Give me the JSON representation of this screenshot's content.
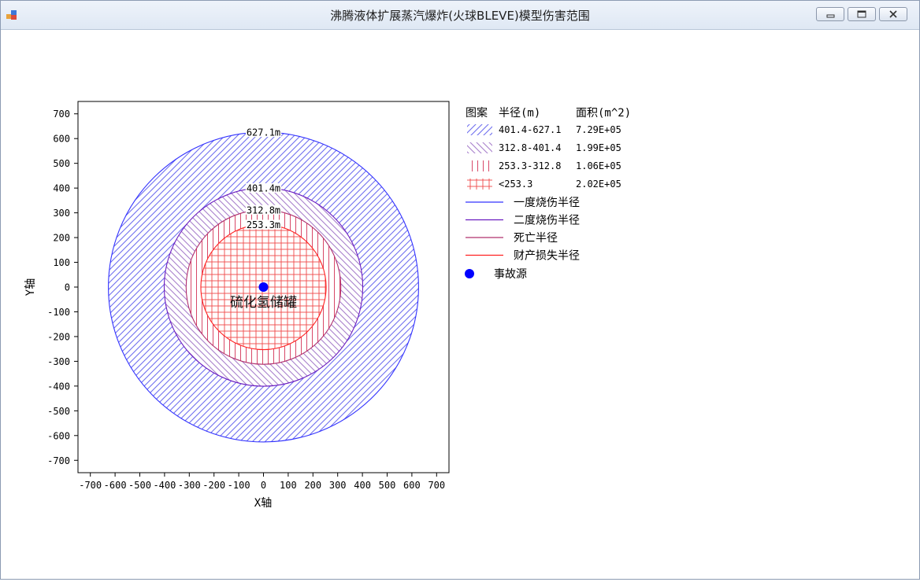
{
  "window": {
    "title": "沸腾液体扩展蒸汽爆炸(火球BLEVE)模型伤害范围",
    "icon": "app-icon",
    "controls": [
      "minimize-icon",
      "maximize-icon",
      "close-icon"
    ]
  },
  "chart_data": {
    "type": "radius-zones",
    "xlabel": "X轴",
    "ylabel": "Y轴",
    "xlim": [
      -750,
      750
    ],
    "ylim": [
      -750,
      750
    ],
    "xticks": [
      -700,
      -600,
      -500,
      -400,
      -300,
      -200,
      -100,
      0,
      100,
      200,
      300,
      400,
      500,
      600,
      700
    ],
    "yticks": [
      700,
      600,
      500,
      400,
      300,
      200,
      100,
      0,
      -100,
      -200,
      -300,
      -400,
      -500,
      -600,
      -700
    ],
    "source": {
      "label": "硫化氢储罐",
      "x": 0,
      "y": 0,
      "color": "#0000ff"
    },
    "circles": [
      {
        "name": "一度烧伤半径",
        "radius": 627.1,
        "label": "627.1m",
        "color": "#3333ff"
      },
      {
        "name": "二度烧伤半径",
        "radius": 401.4,
        "label": "401.4m",
        "color": "#6a1cc0"
      },
      {
        "name": "死亡半径",
        "radius": 312.8,
        "label": "312.8m",
        "color": "#b0306e"
      },
      {
        "name": "财产损失半径",
        "radius": 253.3,
        "label": "253.3m",
        "color": "#ff2020"
      }
    ],
    "zones": [
      {
        "pattern": "hatch-forward",
        "range": "401.4-627.1",
        "area": "7.29E+05",
        "color": "#6e6ef0"
      },
      {
        "pattern": "hatch-back",
        "range": "312.8-401.4",
        "area": "1.99E+05",
        "color": "#a880cc"
      },
      {
        "pattern": "vertical",
        "range": "253.3-312.8",
        "area": "1.06E+05",
        "color": "#d84868"
      },
      {
        "pattern": "grid",
        "range": "<253.3",
        "area": "2.02E+05",
        "color": "#f04848"
      }
    ],
    "legend": {
      "position": "right",
      "header": {
        "pattern": "图案",
        "radius": "半径(m)",
        "area": "面积(m^2)"
      },
      "source_label": "事故源"
    }
  }
}
